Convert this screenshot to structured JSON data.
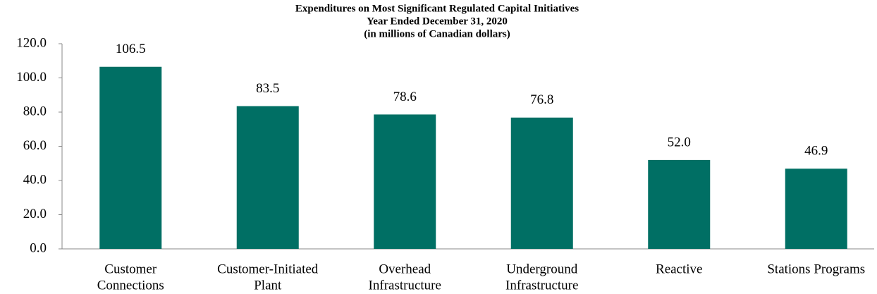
{
  "chart_data": {
    "type": "bar",
    "title": [
      "Expenditures on Most Significant Regulated Capital Initiatives",
      "Year Ended December 31, 2020",
      "(in millions of Canadian dollars)"
    ],
    "categories": [
      [
        "Customer",
        "Connections"
      ],
      [
        "Customer-Initiated",
        "Plant"
      ],
      [
        "Overhead",
        "Infrastructure"
      ],
      [
        "Underground",
        "Infrastructure"
      ],
      [
        "Reactive"
      ],
      [
        "Stations Programs"
      ]
    ],
    "values": [
      106.5,
      83.5,
      78.6,
      76.8,
      52.0,
      46.9
    ],
    "value_labels": [
      "106.5",
      "83.5",
      "78.6",
      "76.8",
      "52.0",
      "46.9"
    ],
    "color": "#006f64",
    "ylim": [
      0,
      120
    ],
    "yticks": [
      {
        "value": 0,
        "label": "0.0"
      },
      {
        "value": 20,
        "label": "20.0"
      },
      {
        "value": 40,
        "label": "40.0"
      },
      {
        "value": 60,
        "label": "60.0"
      },
      {
        "value": 80,
        "label": "80.0"
      },
      {
        "value": 100,
        "label": "100.0"
      },
      {
        "value": 120,
        "label": "120.0"
      }
    ],
    "grid": false
  }
}
